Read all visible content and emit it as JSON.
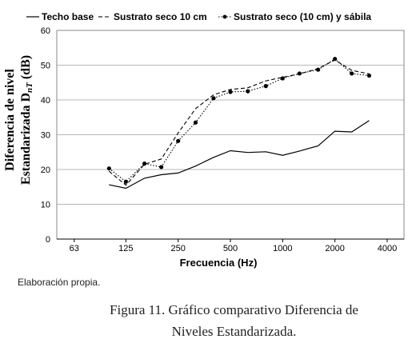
{
  "chart_data": {
    "type": "line",
    "x_scale": "log",
    "xlabel": "Frecuencia (Hz)",
    "ylabel_lines": [
      "Diferencia de nivel",
      "Estandarizada D",
      "nT",
      " (dB)"
    ],
    "xtick_labels": [
      "63",
      "125",
      "250",
      "500",
      "1000",
      "2000",
      "4000"
    ],
    "xticks": [
      63,
      125,
      250,
      500,
      1000,
      2000,
      4000
    ],
    "xlim": [
      50,
      5000
    ],
    "ylim": [
      0,
      60
    ],
    "yticks": [
      0,
      10,
      20,
      30,
      40,
      50,
      60
    ],
    "grid": "horizontal",
    "legend_position": "top",
    "x": [
      100,
      125,
      160,
      200,
      250,
      315,
      400,
      500,
      630,
      800,
      1000,
      1250,
      1600,
      2000,
      2500,
      3150
    ],
    "series": [
      {
        "name": "Techo base",
        "style": "solid",
        "values": [
          15.6,
          14.6,
          17.5,
          18.5,
          19.0,
          21.0,
          23.5,
          25.4,
          24.9,
          25.1,
          24.1,
          25.3,
          26.8,
          31.0,
          30.8,
          34.1
        ]
      },
      {
        "name": "Sustrato seco 10 cm",
        "style": "dashed",
        "values": [
          19.5,
          15.5,
          21.5,
          23.0,
          30.5,
          37.5,
          41.5,
          43.0,
          43.5,
          45.5,
          46.5,
          47.5,
          49.0,
          51.5,
          48.5,
          47.5
        ]
      },
      {
        "name": "Sustrato seco (10 cm) y sábila",
        "style": "dotted-markers",
        "values": [
          20.3,
          16.5,
          21.7,
          20.7,
          28.2,
          33.5,
          40.5,
          42.3,
          42.5,
          44.0,
          46.2,
          47.6,
          48.7,
          51.8,
          47.6,
          47.0
        ]
      }
    ]
  },
  "note": "Elaboración propia.",
  "caption": {
    "line1": "Figura 11. Gráfico comparativo Diferencia de",
    "line2": "Niveles Estandarizada."
  }
}
